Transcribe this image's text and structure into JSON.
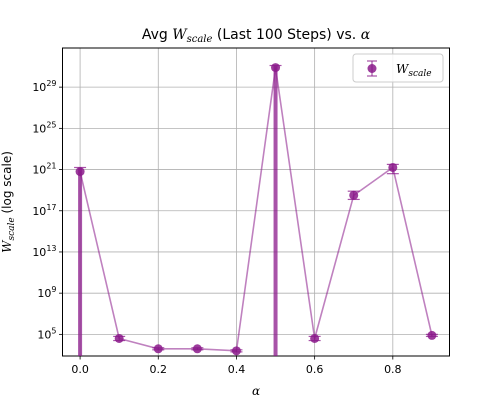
{
  "chart_data": {
    "type": "scatter",
    "title": {
      "pre": "Avg ",
      "sym": "W",
      "sub": "scale",
      "post": " (Last 100 Steps) vs. ",
      "greek": "α"
    },
    "xlabel": "α",
    "ylabel": {
      "sym": "W",
      "sub": "scale",
      "post": " (log scale)"
    },
    "y_scale": "log",
    "grid": true,
    "legend_position": "top-right",
    "x": [
      0.0,
      0.1,
      0.2,
      0.3,
      0.4,
      0.5,
      0.6,
      0.7,
      0.8,
      0.9
    ],
    "series": [
      {
        "name": {
          "sym": "W",
          "sub": "scale"
        },
        "color": "#8b1a8b",
        "log10_values": [
          20.8,
          4.6,
          3.6,
          3.6,
          3.4,
          30.9,
          4.6,
          18.5,
          21.2,
          4.9
        ],
        "log10_err_lower": [
          23.8,
          0.2,
          0.1,
          0.1,
          0.1,
          33.9,
          0.2,
          0.4,
          0.6,
          0.1
        ],
        "log10_err_upper": [
          0.4,
          0.2,
          0.1,
          0.1,
          0.1,
          0.2,
          0.2,
          0.4,
          0.3,
          0.1
        ]
      }
    ],
    "xticks": [
      "0.0",
      "0.2",
      "0.4",
      "0.6",
      "0.8"
    ],
    "xtick_values": [
      0.0,
      0.2,
      0.4,
      0.6,
      0.8
    ],
    "yticks": [
      {
        "base": "10",
        "exp": "5",
        "log10": 5
      },
      {
        "base": "10",
        "exp": "9",
        "log10": 9
      },
      {
        "base": "10",
        "exp": "13",
        "log10": 13
      },
      {
        "base": "10",
        "exp": "17",
        "log10": 17
      },
      {
        "base": "10",
        "exp": "21",
        "log10": 21
      },
      {
        "base": "10",
        "exp": "25",
        "log10": 25
      },
      {
        "base": "10",
        "exp": "29",
        "log10": 29
      }
    ],
    "xlim": [
      -0.045,
      0.945
    ],
    "ylim_log10": [
      2.9,
      32.8
    ]
  }
}
